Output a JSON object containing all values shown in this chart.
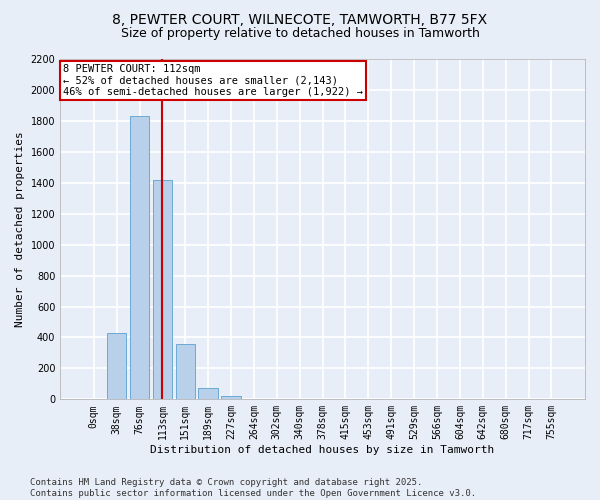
{
  "title_line1": "8, PEWTER COURT, WILNECOTE, TAMWORTH, B77 5FX",
  "title_line2": "Size of property relative to detached houses in Tamworth",
  "xlabel": "Distribution of detached houses by size in Tamworth",
  "ylabel": "Number of detached properties",
  "bar_labels": [
    "0sqm",
    "38sqm",
    "76sqm",
    "113sqm",
    "151sqm",
    "189sqm",
    "227sqm",
    "264sqm",
    "302sqm",
    "340sqm",
    "378sqm",
    "415sqm",
    "453sqm",
    "491sqm",
    "529sqm",
    "566sqm",
    "604sqm",
    "642sqm",
    "680sqm",
    "717sqm",
    "755sqm"
  ],
  "bar_values": [
    5,
    430,
    1830,
    1415,
    355,
    75,
    22,
    3,
    0,
    0,
    0,
    0,
    0,
    0,
    0,
    0,
    0,
    0,
    0,
    0,
    0
  ],
  "bar_color": "#b8d0ea",
  "bar_edge_color": "#6aaad4",
  "annotation_text_line1": "8 PEWTER COURT: 112sqm",
  "annotation_text_line2": "← 52% of detached houses are smaller (2,143)",
  "annotation_text_line3": "46% of semi-detached houses are larger (1,922) →",
  "vline_color": "#cc0000",
  "annotation_box_edge": "#cc0000",
  "ylim": [
    0,
    2200
  ],
  "yticks": [
    0,
    200,
    400,
    600,
    800,
    1000,
    1200,
    1400,
    1600,
    1800,
    2000,
    2200
  ],
  "footer_line1": "Contains HM Land Registry data © Crown copyright and database right 2025.",
  "footer_line2": "Contains public sector information licensed under the Open Government Licence v3.0.",
  "bg_color": "#e8eef7",
  "plot_bg_color": "#e8eef7",
  "grid_color": "#ffffff",
  "title_fontsize": 10,
  "subtitle_fontsize": 9,
  "axis_label_fontsize": 8,
  "tick_fontsize": 7,
  "annotation_fontsize": 7.5,
  "footer_fontsize": 6.5
}
